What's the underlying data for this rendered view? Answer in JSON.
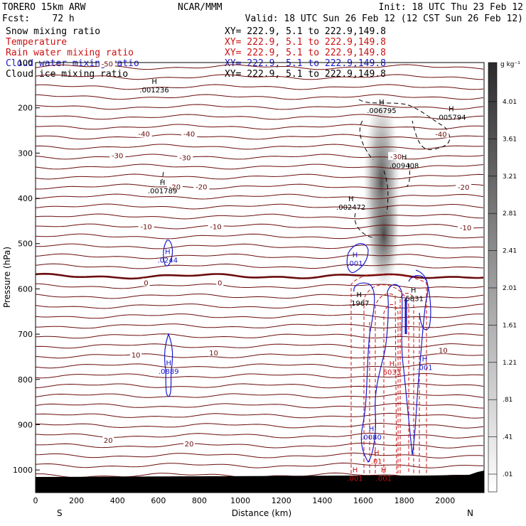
{
  "header": {
    "model": "TORERO  15km ARW",
    "center": "NCAR/MMM",
    "init": "Init: 18 UTC Thu 23 Feb 12",
    "fcst": "Fcst:    72 h",
    "valid": "Valid: 18 UTC Sun 26 Feb 12 (12 CST Sun 26 Feb 12)"
  },
  "legend": [
    {
      "name": "Snow mixing ratio",
      "color": "#000000",
      "xy": "XY= 222.9,  5.1 to 222.9,149.8"
    },
    {
      "name": "Temperature",
      "color": "#cc1111",
      "xy": "XY= 222.9,  5.1 to 222.9,149.8"
    },
    {
      "name": "Rain water mixing ratio",
      "color": "#cc1111",
      "xy": "XY= 222.9,  5.1 to 222.9,149.8"
    },
    {
      "name": "Cloud water mixing ratio",
      "color": "#1a1acc",
      "xy": "XY= 222.9,  5.1 to 222.9,149.8"
    },
    {
      "name": "Cloud ice mixing ratio",
      "color": "#000000",
      "xy": "XY= 222.9,  5.1 to 222.9,149.8"
    }
  ],
  "chart_data": {
    "type": "cross-section",
    "xlabel": "Distance (km)",
    "ylabel": "Pressure (hPa)",
    "xlim": [
      0,
      2190
    ],
    "ylim": [
      1050,
      100
    ],
    "xticks": [
      0,
      200,
      400,
      600,
      800,
      1000,
      1200,
      1400,
      1600,
      1800,
      2000
    ],
    "yticks": [
      200,
      300,
      400,
      500,
      600,
      700,
      800,
      900,
      1000
    ],
    "ytick_top_label": "100",
    "south_label": "S",
    "north_label": "N",
    "colorbar": {
      "unit": "g kg⁻¹",
      "ticks": [
        ".01",
        ".41",
        ".81",
        "1.21",
        "1.61",
        "2.01",
        "2.41",
        "2.81",
        "3.21",
        "3.61",
        "4.01"
      ],
      "range": [
        0,
        4.41
      ]
    },
    "temperature_contours": [
      {
        "label": "-50",
        "x": 350,
        "p": 102
      },
      {
        "label": "-40",
        "x": 530,
        "p": 257
      },
      {
        "label": "-40",
        "x": 750,
        "p": 257
      },
      {
        "label": "-40",
        "x": 1980,
        "p": 258
      },
      {
        "label": "-30",
        "x": 400,
        "p": 305
      },
      {
        "label": "-30",
        "x": 730,
        "p": 310
      },
      {
        "label": "-30",
        "x": 1760,
        "p": 307
      },
      {
        "label": "-20",
        "x": 680,
        "p": 374
      },
      {
        "label": "-20",
        "x": 810,
        "p": 374
      },
      {
        "label": "-20",
        "x": 2090,
        "p": 375
      },
      {
        "label": "-10",
        "x": 540,
        "p": 462
      },
      {
        "label": "-10",
        "x": 880,
        "p": 462
      },
      {
        "label": "-10",
        "x": 2100,
        "p": 464
      },
      {
        "label": "0",
        "x": 540,
        "p": 586
      },
      {
        "label": "0",
        "x": 900,
        "p": 586
      },
      {
        "label": "10",
        "x": 490,
        "p": 745
      },
      {
        "label": "10",
        "x": 870,
        "p": 741
      },
      {
        "label": "10",
        "x": 1990,
        "p": 735
      },
      {
        "label": "20",
        "x": 355,
        "p": 934
      },
      {
        "label": "20",
        "x": 750,
        "p": 942
      }
    ],
    "maxima": [
      {
        "label": ".001236",
        "x": 580,
        "p": 163,
        "color": "#000000"
      },
      {
        "label": ".006795",
        "x": 1690,
        "p": 208,
        "color": "#000000"
      },
      {
        "label": ".005794",
        "x": 2030,
        "p": 223,
        "color": "#000000"
      },
      {
        "label": ".009408",
        "x": 1800,
        "p": 330,
        "color": "#000000"
      },
      {
        "label": ".001789",
        "x": 620,
        "p": 386,
        "color": "#000000"
      },
      {
        "label": ".002472",
        "x": 1540,
        "p": 422,
        "color": "#000000"
      },
      {
        "label": ".0244",
        "x": 645,
        "p": 539,
        "color": "#1a1acc"
      },
      {
        "label": ".001",
        "x": 1560,
        "p": 546,
        "color": "#1a1acc"
      },
      {
        "label": ".1967",
        "x": 1580,
        "p": 634,
        "color": "#000000"
      },
      {
        "label": ".5831",
        "x": 1845,
        "p": 624,
        "color": "#000000"
      },
      {
        "label": ".0889",
        "x": 650,
        "p": 785,
        "color": "#1a1acc"
      },
      {
        "label": ".001",
        "x": 1900,
        "p": 776,
        "color": "#1a1acc"
      },
      {
        "label": "6033",
        "x": 1740,
        "p": 786,
        "color": "#cc1111"
      },
      {
        "label": ".0080",
        "x": 1640,
        "p": 930,
        "color": "#1a1acc"
      },
      {
        "label": ".01",
        "x": 1665,
        "p": 983,
        "color": "#cc1111"
      },
      {
        "label": ".001",
        "x": 1560,
        "p": 1021,
        "color": "#cc1111"
      },
      {
        "label": ".001",
        "x": 1700,
        "p": 1021,
        "color": "#cc1111"
      }
    ]
  }
}
